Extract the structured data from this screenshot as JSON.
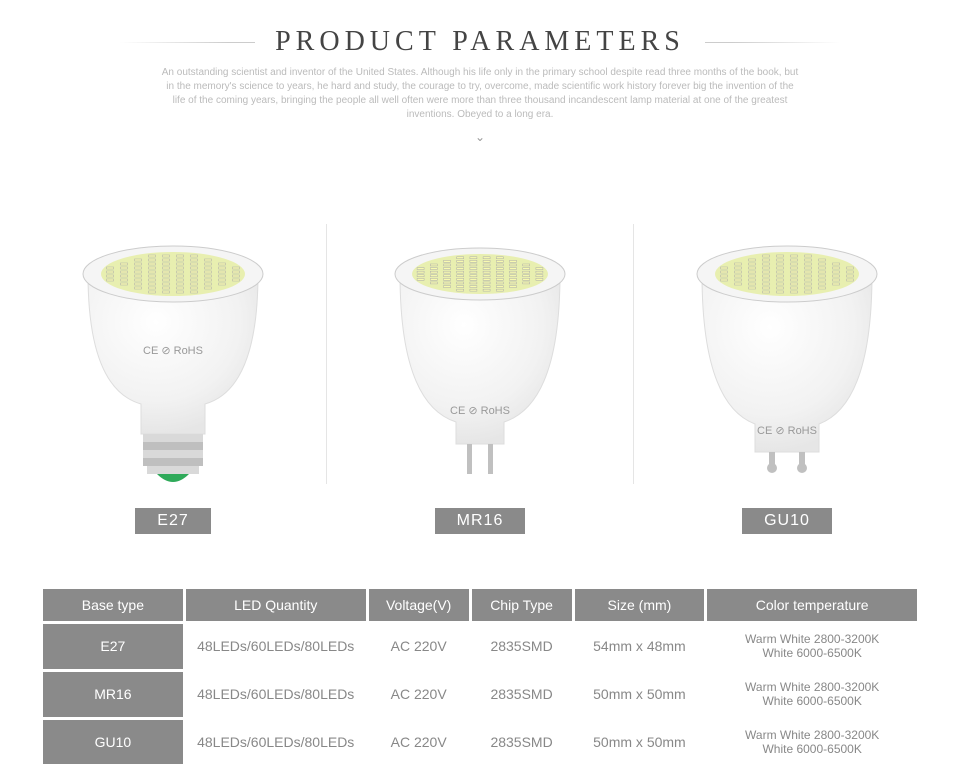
{
  "header": {
    "title": "PRODUCT PARAMETERS",
    "subtext": "An outstanding scientist and inventor of the United States. Although his life only in the primary school despite read three months of the book, but in the memory's science to years, he hard and study, the courage to try, overcome, made scientific work history forever big the invention of the life of the coming years, bringing the people all well often were more than three thousand incandescent lamp material at one of the greatest inventions. Obeyed to a long era.",
    "chevron": "⌄"
  },
  "products": [
    {
      "name": "E27",
      "label": "E27"
    },
    {
      "name": "MR16",
      "label": "MR16"
    },
    {
      "name": "GU10",
      "label": "GU10"
    }
  ],
  "specs": {
    "headers": [
      "Base type",
      "LED Quantity",
      "Voltage(V)",
      "Chip Type",
      "Size (mm)",
      "Color temperature"
    ],
    "rows": [
      {
        "base": "E27",
        "led": "48LEDs/60LEDs/80LEDs",
        "voltage": "AC 220V",
        "chip": "2835SMD",
        "size": "54mm x 48mm",
        "ct_line1": "Warm White 2800-3200K",
        "ct_line2": "White 6000-6500K"
      },
      {
        "base": "MR16",
        "led": "48LEDs/60LEDs/80LEDs",
        "voltage": "AC 220V",
        "chip": "2835SMD",
        "size": "50mm x 50mm",
        "ct_line1": "Warm White 2800-3200K",
        "ct_line2": "White 6000-6500K"
      },
      {
        "base": "GU10",
        "led": "48LEDs/60LEDs/80LEDs",
        "voltage": "AC 220V",
        "chip": "2835SMD",
        "size": "50mm x 50mm",
        "ct_line1": "Warm White 2800-3200K",
        "ct_line2": "White 6000-6500K"
      }
    ]
  },
  "style": {
    "title_color": "#444444",
    "title_letter_spacing": 5,
    "subtext_color": "#bbbbbb",
    "label_bg": "#8a8a8a",
    "label_fg": "#ffffff",
    "table_header_bg": "#8a8a8a",
    "table_header_fg": "#ffffff",
    "table_rowhead_bg": "#8a8a8a",
    "table_cell_fg": "#888888",
    "table_spacing": 3,
    "divider_color": "#e5e5e5",
    "background": "#ffffff"
  },
  "bulb_svg": {
    "marking": "CE ⊘ RoHS",
    "led_face": {
      "rim_fill": "#f5f5f5",
      "rim_stroke": "#ccc",
      "inner_fill": "#e8efb0",
      "chip_fill": "#f8fab0",
      "chip_stroke": "#aaa",
      "chip_size": 7,
      "grid": 8,
      "radius": 46
    },
    "body": {
      "fill_light": "#fcfcfc",
      "fill_mid": "#f0f0f0",
      "fill_dark": "#e4e4e4",
      "stroke": "#ddd"
    },
    "e27_base": {
      "thread_fill": "#d9d9d9",
      "thread_dark": "#bfbfbf",
      "tip_fill": "#2faa5a"
    },
    "mr16_pins": {
      "fill": "#c0c0c0"
    },
    "gu10_pins": {
      "fill": "#c0c0c0"
    }
  }
}
